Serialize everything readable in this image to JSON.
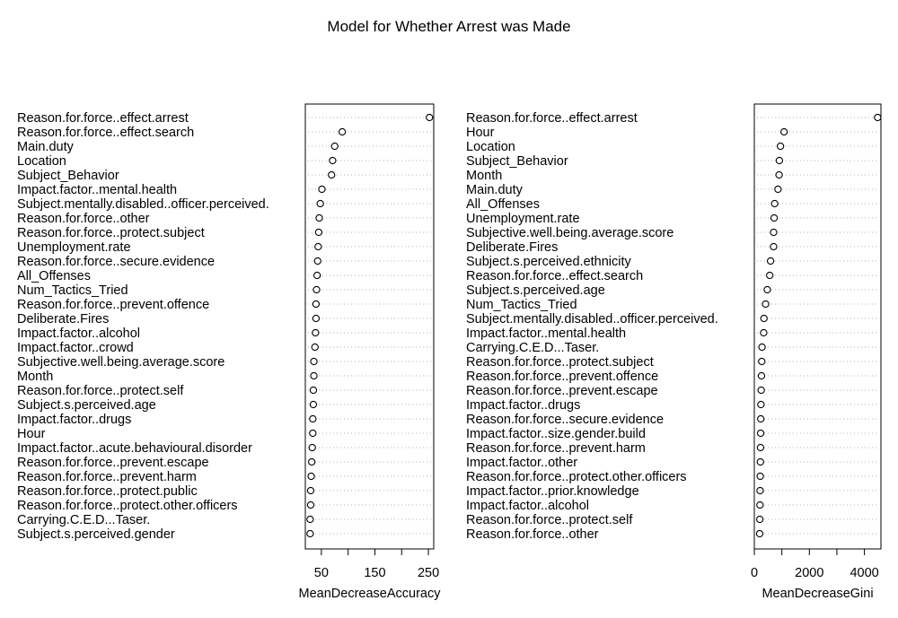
{
  "title": "Model for Whether Arrest was Made",
  "chart_data": [
    {
      "type": "dot",
      "xlabel": "MeanDecreaseAccuracy",
      "xlim": [
        20,
        260
      ],
      "xticks": [
        50,
        150,
        250
      ],
      "minor_xticks": [
        100,
        200
      ],
      "grid": "dotted",
      "categories": [
        "Reason.for.force..effect.arrest",
        "Reason.for.force..effect.search",
        "Main.duty",
        "Location",
        "Subject_Behavior",
        "Impact.factor..mental.health",
        "Subject.mentally.disabled..officer.perceived.",
        "Reason.for.force..other",
        "Reason.for.force..protect.subject",
        "Unemployment.rate",
        "Reason.for.force..secure.evidence",
        "All_Offenses",
        "Num_Tactics_Tried",
        "Reason.for.force..prevent.offence",
        "Deliberate.Fires",
        "Impact.factor..alcohol",
        "Impact.factor..crowd",
        "Subjective.well.being.average.score",
        "Month",
        "Reason.for.force..protect.self",
        "Subject.s.perceived.age",
        "Impact.factor..drugs",
        "Hour",
        "Impact.factor..acute.behavioural.disorder",
        "Reason.for.force..prevent.escape",
        "Reason.for.force..prevent.harm",
        "Reason.for.force..protect.public",
        "Reason.for.force..protect.other.officers",
        "Carrying.C.E.D...Taser.",
        "Subject.s.perceived.gender"
      ],
      "values": [
        252,
        89,
        75,
        71,
        69,
        51,
        48,
        46,
        45,
        44,
        43,
        42,
        41,
        40,
        40,
        39,
        38,
        36,
        36,
        35,
        35,
        34,
        34,
        33,
        32,
        31,
        30,
        30,
        29,
        29
      ]
    },
    {
      "type": "dot",
      "xlabel": "MeanDecreaseGini",
      "xlim": [
        0,
        4600
      ],
      "xticks": [
        0,
        2000,
        4000
      ],
      "minor_xticks": [
        1000,
        3000
      ],
      "grid": "dotted",
      "categories": [
        "Reason.for.force..effect.arrest",
        "Hour",
        "Location",
        "Subject_Behavior",
        "Month",
        "Main.duty",
        "All_Offenses",
        "Unemployment.rate",
        "Subjective.well.being.average.score",
        "Deliberate.Fires",
        "Subject.s.perceived.ethnicity",
        "Reason.for.force..effect.search",
        "Subject.s.perceived.age",
        "Num_Tactics_Tried",
        "Subject.mentally.disabled..officer.perceived.",
        "Impact.factor..mental.health",
        "Carrying.C.E.D...Taser.",
        "Reason.for.force..protect.subject",
        "Reason.for.force..prevent.offence",
        "Reason.for.force..prevent.escape",
        "Impact.factor..drugs",
        "Reason.for.force..secure.evidence",
        "Impact.factor..size.gender.build",
        "Reason.for.force..prevent.harm",
        "Impact.factor..other",
        "Reason.for.force..protect.other.officers",
        "Impact.factor..prior.knowledge",
        "Impact.factor..alcohol",
        "Reason.for.force..protect.self",
        "Reason.for.force..other"
      ],
      "values": [
        4480,
        1080,
        950,
        910,
        900,
        860,
        740,
        720,
        700,
        700,
        590,
        560,
        470,
        410,
        350,
        340,
        280,
        270,
        260,
        250,
        240,
        235,
        230,
        225,
        220,
        215,
        210,
        205,
        200,
        195
      ]
    }
  ]
}
